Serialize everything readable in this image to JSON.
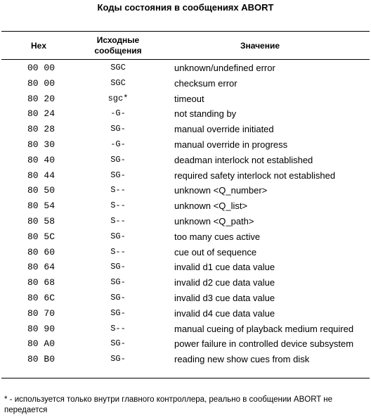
{
  "title": "Коды состояния в сообщениях ABORT",
  "table": {
    "headers": {
      "hex": "Hex",
      "source_line1": "Исходные",
      "source_line2": "сообщения",
      "meaning": "Значение"
    },
    "rows": [
      {
        "hex": "00 00",
        "source": "SGC",
        "meaning": "unknown/undefined error"
      },
      {
        "hex": "80 00",
        "source": "SGC",
        "meaning": "checksum error"
      },
      {
        "hex": "80 20",
        "source": "sgc*",
        "meaning": "timeout"
      },
      {
        "hex": "80 24",
        "source": "-G-",
        "meaning": "not standing by"
      },
      {
        "hex": "80 28",
        "source": "SG-",
        "meaning": "manual override initiated"
      },
      {
        "hex": "80 30",
        "source": "-G-",
        "meaning": "manual override in progress"
      },
      {
        "hex": "80 40",
        "source": "SG-",
        "meaning": "deadman interlock not established"
      },
      {
        "hex": "80 44",
        "source": "SG-",
        "meaning": "required safety interlock not established"
      },
      {
        "hex": "80 50",
        "source": "S--",
        "meaning": "unknown <Q_number>"
      },
      {
        "hex": "80 54",
        "source": "S--",
        "meaning": "unknown <Q_list>"
      },
      {
        "hex": "80 58",
        "source": "S--",
        "meaning": "unknown <Q_path>"
      },
      {
        "hex": "80 5C",
        "source": "SG-",
        "meaning": "too many cues active"
      },
      {
        "hex": "80 60",
        "source": "S--",
        "meaning": "cue out of sequence"
      },
      {
        "hex": "80 64",
        "source": "SG-",
        "meaning": "invalid d1 cue data value"
      },
      {
        "hex": "80 68",
        "source": "SG-",
        "meaning": "invalid d2 cue data value"
      },
      {
        "hex": "80 6C",
        "source": "SG-",
        "meaning": "invalid d3 cue data value"
      },
      {
        "hex": "80 70",
        "source": "SG-",
        "meaning": "invalid d4 cue data value"
      },
      {
        "hex": "80 90",
        "source": "S--",
        "meaning": "manual cueing of playback medium required"
      },
      {
        "hex": "80 A0",
        "source": "SG-",
        "meaning": "power failure in controlled device subsystem"
      },
      {
        "hex": "80 B0",
        "source": "SG-",
        "meaning": "reading new show cues from disk"
      }
    ]
  },
  "footnote": "* - используется только внутри главного контроллера, реально в сообщении ABORT не передается"
}
